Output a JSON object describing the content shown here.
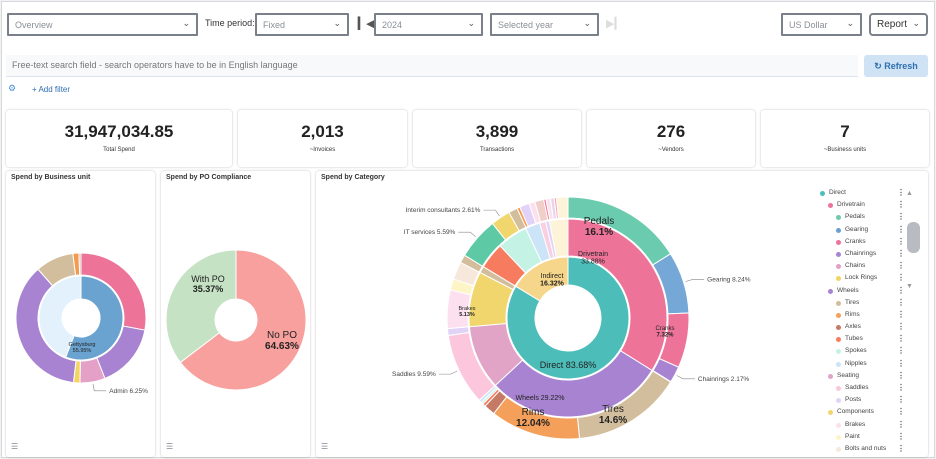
{
  "toolbar": {
    "view_select": "Overview",
    "time_period_label": "Time period:",
    "period_type": "Fixed",
    "year": "2024",
    "year_mode": "Selected year",
    "currency": "US Dollar",
    "report_label": "Report"
  },
  "search": {
    "placeholder": "Free-text search field - search operators have to be in English language",
    "refresh_label": "Refresh",
    "add_filter_label": "+ Add filter"
  },
  "kpis": [
    {
      "value": "31,947,034.85",
      "label": "Total Spend"
    },
    {
      "value": "2,013",
      "label": "~Invoices"
    },
    {
      "value": "3,899",
      "label": "Transactions"
    },
    {
      "value": "276",
      "label": "~Vendors"
    },
    {
      "value": "7",
      "label": "~Business units"
    }
  ],
  "chart_data": [
    {
      "type": "pie",
      "title": "Spend by Business unit",
      "rings": [
        [
          {
            "label": "Gettysburg",
            "value": 55.95,
            "color": "#6aa3cf",
            "text": "Gettysburg",
            "pct": "55.95%"
          },
          {
            "label": "",
            "value": 44.05,
            "color": "#e3f1fd"
          }
        ],
        [
          {
            "value": 28.0,
            "color": "#ed7399"
          },
          {
            "value": 16.0,
            "color": "#a883d1"
          },
          {
            "label": "Admin",
            "value": 6.25,
            "color": "#e4a0c6",
            "pct": "6.25%"
          },
          {
            "value": 1.6,
            "color": "#f4d460"
          },
          {
            "value": 36.65,
            "color": "#a883d1"
          },
          {
            "value": 9.5,
            "color": "#d2be9d"
          },
          {
            "value": 1.5,
            "color": "#f59a4d"
          },
          {
            "value": 0.5,
            "color": "#c9b6a6"
          }
        ]
      ]
    },
    {
      "type": "pie",
      "title": "Spend by PO Compliance",
      "slices": [
        {
          "label": "No PO",
          "value": 64.63,
          "pct": "64.63%",
          "color": "#f8a09e"
        },
        {
          "label": "With PO",
          "value": 35.37,
          "pct": "35.37%",
          "color": "#c5e2c4"
        }
      ]
    },
    {
      "type": "pie",
      "title": "Spend by Category",
      "rings": [
        [
          {
            "label": "Direct",
            "value": 83.68,
            "pct": "83.68%",
            "color": "#4dbdb9"
          },
          {
            "label": "Indirect",
            "value": 16.32,
            "pct": "16.32%",
            "color": "#f6d68a"
          }
        ],
        [
          {
            "label": "Drivetrain",
            "value": 33.88,
            "pct": "33.88%",
            "color": "#ed7399"
          },
          {
            "label": "Wheels",
            "value": 29.22,
            "pct": "29.22%",
            "color": "#a883d1"
          },
          {
            "label": "Seating",
            "value": 10.5,
            "color": "#e1a4c6"
          },
          {
            "label": "Components",
            "value": 9.0,
            "color": "#f0d66c"
          },
          {
            "value": 1.08,
            "color": "#d2be9d"
          },
          {
            "value": 4.3,
            "color": "#f77c5f"
          },
          {
            "value": 5.0,
            "color": "#c4f2e4"
          },
          {
            "value": 2.4,
            "color": "#cce4f8"
          },
          {
            "value": 1.0,
            "color": "#fbcfe2"
          },
          {
            "value": 0.6,
            "color": "#e1d2f7"
          },
          {
            "value": 3.02,
            "color": "#fdf3d8"
          }
        ],
        [
          {
            "label": "Pedals",
            "value": 16.1,
            "pct": "16.1%",
            "color": "#6acbae"
          },
          {
            "label": "Gearing",
            "value": 8.24,
            "pct": "8.24%",
            "color": "#75a8d6"
          },
          {
            "label": "Cranks",
            "value": 7.32,
            "pct": "7.32%",
            "color": "#ed7399"
          },
          {
            "label": "Chainrings",
            "value": 2.17,
            "pct": "2.17%",
            "color": "#a883d1"
          },
          {
            "value": 0.05,
            "color": "#f4d460"
          },
          {
            "label": "Tires",
            "value": 14.6,
            "pct": "14.6%",
            "color": "#d2be9d"
          },
          {
            "label": "Rims",
            "value": 12.04,
            "pct": "12.04%",
            "color": "#f5a05a"
          },
          {
            "value": 1.5,
            "color": "#c57a66"
          },
          {
            "value": 0.4,
            "color": "#f77c5f"
          },
          {
            "value": 0.3,
            "color": "#c4f2e4"
          },
          {
            "value": 0.38,
            "color": "#cce4f8"
          },
          {
            "label": "Saddles",
            "value": 9.59,
            "pct": "9.59%",
            "color": "#fcc7dc"
          },
          {
            "value": 0.91,
            "color": "#e1d2f7"
          },
          {
            "label": "Brakes",
            "value": 5.13,
            "pct": "5.13%",
            "color": "#fde0f0"
          },
          {
            "value": 1.5,
            "color": "#fdf5c6"
          },
          {
            "value": 2.37,
            "color": "#f6e8da"
          },
          {
            "value": 1.08,
            "color": "#d2be9d"
          },
          {
            "label": "IT services",
            "value": 5.59,
            "pct": "5.59%",
            "color": "#5ec9a5"
          },
          {
            "label": "Interim consultants",
            "value": 2.61,
            "pct": "2.61%",
            "color": "#f0d66c"
          },
          {
            "value": 1.2,
            "color": "#d2be9d"
          },
          {
            "value": 0.4,
            "color": "#f59a4d"
          },
          {
            "value": 1.3,
            "color": "#e1d2f7"
          },
          {
            "value": 0.8,
            "color": "#fde0f0"
          },
          {
            "value": 1.2,
            "color": "#f0cfc8"
          },
          {
            "value": 0.3,
            "color": "#ed7399"
          },
          {
            "value": 0.6,
            "color": "#fbe3ec"
          },
          {
            "value": 0.5,
            "color": "#e9d4f0"
          },
          {
            "value": 0.3,
            "color": "#f7a5b5"
          },
          {
            "value": 1.53,
            "color": "#fdf3d8"
          }
        ]
      ]
    }
  ],
  "legend": [
    {
      "label": "Direct",
      "level": 0,
      "color": "#4dbdb9"
    },
    {
      "label": "Drivetrain",
      "level": 1,
      "color": "#ed7399"
    },
    {
      "label": "Pedals",
      "level": 2,
      "color": "#6acbae"
    },
    {
      "label": "Gearing",
      "level": 2,
      "color": "#6a9fd6"
    },
    {
      "label": "Cranks",
      "level": 2,
      "color": "#ed7399"
    },
    {
      "label": "Chainrings",
      "level": 2,
      "color": "#a883d1"
    },
    {
      "label": "Chains",
      "level": 2,
      "color": "#e4a0c6"
    },
    {
      "label": "Lock Rings",
      "level": 2,
      "color": "#f4d460"
    },
    {
      "label": "Wheels",
      "level": 1,
      "color": "#a883d1"
    },
    {
      "label": "Tires",
      "level": 2,
      "color": "#d2be9d"
    },
    {
      "label": "Rims",
      "level": 2,
      "color": "#f5a05a"
    },
    {
      "label": "Axles",
      "level": 2,
      "color": "#c57a66"
    },
    {
      "label": "Tubes",
      "level": 2,
      "color": "#f77c5f"
    },
    {
      "label": "Spokes",
      "level": 2,
      "color": "#c4f2e4"
    },
    {
      "label": "Nipples",
      "level": 2,
      "color": "#cce4f8"
    },
    {
      "label": "Seating",
      "level": 1,
      "color": "#e1a4c6"
    },
    {
      "label": "Saddles",
      "level": 2,
      "color": "#fcc7dc"
    },
    {
      "label": "Posts",
      "level": 2,
      "color": "#e1d2f7"
    },
    {
      "label": "Components",
      "level": 1,
      "color": "#f0d66c"
    },
    {
      "label": "Brakes",
      "level": 2,
      "color": "#fde0f0"
    },
    {
      "label": "Paint",
      "level": 2,
      "color": "#fdf5c6"
    },
    {
      "label": "Bolts and nuts",
      "level": 2,
      "color": "#f6e8da"
    }
  ]
}
